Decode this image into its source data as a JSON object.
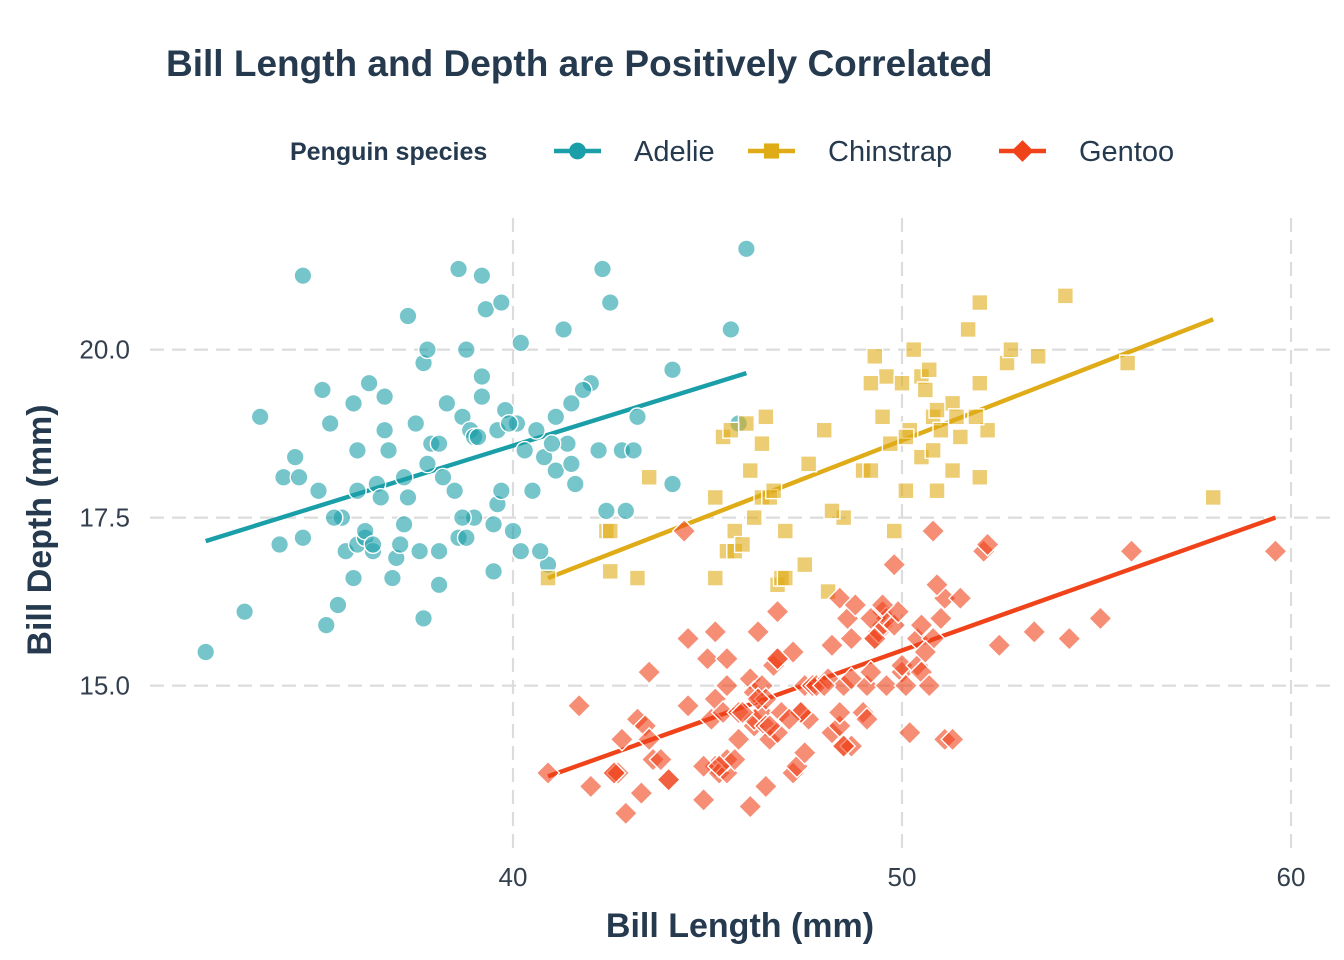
{
  "chart_data": {
    "type": "scatter",
    "title": "Bill Length and Depth are Positively Correlated",
    "xlabel": "Bill Length (mm)",
    "ylabel": "Bill Depth (mm)",
    "xlim": [
      31.3,
      60.6
    ],
    "ylim": [
      12.4,
      22.0
    ],
    "xticks": [
      40,
      50,
      60
    ],
    "xtick_labels": [
      "40",
      "50",
      "60"
    ],
    "yticks": [
      15,
      17.5,
      20
    ],
    "ytick_labels": [
      "15.0",
      "17.5",
      "20.0"
    ],
    "grid": true,
    "legend": {
      "title": "Penguin species",
      "position": "top"
    },
    "series": [
      {
        "name": "Adelie",
        "color": "#1a9fa8",
        "marker": "circle",
        "trend": {
          "x": [
            32.1,
            46.0
          ],
          "y": [
            17.15,
            19.65
          ]
        },
        "points": [
          [
            32.1,
            15.5
          ],
          [
            33.1,
            16.1
          ],
          [
            33.5,
            19.0
          ],
          [
            34.0,
            17.1
          ],
          [
            34.1,
            18.1
          ],
          [
            34.4,
            18.4
          ],
          [
            34.5,
            18.1
          ],
          [
            34.6,
            21.1
          ],
          [
            34.6,
            17.2
          ],
          [
            35.1,
            19.4
          ],
          [
            35.0,
            17.9
          ],
          [
            35.2,
            15.9
          ],
          [
            35.3,
            18.9
          ],
          [
            35.5,
            16.2
          ],
          [
            35.6,
            17.5
          ],
          [
            35.7,
            17.0
          ],
          [
            35.9,
            16.6
          ],
          [
            35.9,
            19.2
          ],
          [
            36.0,
            17.1
          ],
          [
            36.0,
            17.9
          ],
          [
            36.0,
            18.5
          ],
          [
            36.2,
            17.2
          ],
          [
            36.2,
            17.3
          ],
          [
            36.3,
            19.5
          ],
          [
            36.4,
            17.0
          ],
          [
            36.5,
            18.0
          ],
          [
            36.6,
            17.8
          ],
          [
            36.7,
            18.8
          ],
          [
            36.7,
            19.3
          ],
          [
            36.8,
            18.5
          ],
          [
            37.0,
            16.9
          ],
          [
            37.2,
            18.1
          ],
          [
            37.3,
            17.8
          ],
          [
            37.3,
            20.5
          ],
          [
            37.5,
            18.9
          ],
          [
            37.6,
            17.0
          ],
          [
            37.7,
            19.8
          ],
          [
            37.8,
            18.3
          ],
          [
            37.8,
            20.0
          ],
          [
            37.9,
            18.6
          ],
          [
            38.1,
            18.6
          ],
          [
            38.1,
            17.0
          ],
          [
            38.2,
            18.1
          ],
          [
            38.3,
            19.2
          ],
          [
            38.5,
            17.9
          ],
          [
            38.6,
            21.2
          ],
          [
            38.6,
            17.2
          ],
          [
            38.7,
            19.0
          ],
          [
            38.8,
            17.2
          ],
          [
            38.8,
            20.0
          ],
          [
            38.9,
            18.8
          ],
          [
            39.0,
            17.5
          ],
          [
            39.0,
            18.7
          ],
          [
            39.1,
            18.7
          ],
          [
            39.2,
            19.6
          ],
          [
            39.2,
            21.1
          ],
          [
            39.3,
            20.6
          ],
          [
            39.5,
            17.4
          ],
          [
            39.5,
            16.7
          ],
          [
            39.6,
            17.7
          ],
          [
            39.6,
            18.8
          ],
          [
            39.7,
            17.9
          ],
          [
            39.7,
            20.7
          ],
          [
            39.8,
            19.1
          ],
          [
            40.2,
            17.0
          ],
          [
            40.3,
            18.5
          ],
          [
            40.5,
            17.9
          ],
          [
            40.6,
            18.8
          ],
          [
            40.8,
            18.4
          ],
          [
            40.9,
            16.8
          ],
          [
            41.1,
            19.0
          ],
          [
            41.3,
            20.3
          ],
          [
            41.4,
            18.6
          ],
          [
            41.6,
            18.0
          ],
          [
            42.0,
            19.5
          ],
          [
            42.2,
            18.5
          ],
          [
            42.3,
            21.2
          ],
          [
            42.5,
            20.7
          ],
          [
            42.8,
            18.5
          ],
          [
            43.2,
            19.0
          ],
          [
            44.1,
            19.7
          ],
          [
            44.1,
            18.0
          ],
          [
            45.6,
            20.3
          ],
          [
            45.8,
            18.9
          ],
          [
            46.0,
            21.5
          ],
          [
            41.1,
            18.2
          ],
          [
            40.7,
            17.0
          ],
          [
            41.5,
            18.3
          ],
          [
            36.9,
            16.6
          ],
          [
            37.1,
            17.1
          ],
          [
            38.1,
            16.5
          ],
          [
            35.4,
            17.5
          ],
          [
            36.4,
            17.1
          ],
          [
            37.7,
            16.0
          ],
          [
            39.2,
            19.3
          ],
          [
            40.1,
            18.9
          ],
          [
            41.0,
            18.6
          ],
          [
            42.4,
            17.6
          ],
          [
            43.1,
            18.5
          ],
          [
            38.7,
            17.5
          ],
          [
            39.9,
            18.9
          ],
          [
            37.2,
            17.4
          ],
          [
            41.5,
            19.2
          ],
          [
            40.2,
            20.1
          ],
          [
            40.0,
            17.3
          ],
          [
            42.9,
            17.6
          ],
          [
            41.8,
            19.4
          ]
        ]
      },
      {
        "name": "Chinstrap",
        "color": "#dfab17",
        "marker": "square",
        "trend": {
          "x": [
            40.9,
            58.0
          ],
          "y": [
            16.6,
            20.45
          ]
        },
        "points": [
          [
            40.9,
            16.6
          ],
          [
            42.4,
            17.3
          ],
          [
            42.5,
            16.7
          ],
          [
            42.5,
            17.3
          ],
          [
            43.2,
            16.6
          ],
          [
            43.5,
            18.1
          ],
          [
            45.2,
            16.6
          ],
          [
            45.2,
            17.8
          ],
          [
            45.4,
            18.7
          ],
          [
            45.5,
            17.0
          ],
          [
            45.7,
            17.0
          ],
          [
            45.7,
            17.3
          ],
          [
            45.9,
            17.1
          ],
          [
            46.0,
            18.9
          ],
          [
            46.1,
            18.2
          ],
          [
            46.2,
            17.5
          ],
          [
            46.4,
            17.8
          ],
          [
            46.4,
            18.6
          ],
          [
            46.6,
            17.8
          ],
          [
            46.7,
            17.9
          ],
          [
            46.8,
            16.5
          ],
          [
            46.9,
            16.6
          ],
          [
            47.0,
            17.3
          ],
          [
            47.5,
            16.8
          ],
          [
            47.6,
            18.3
          ],
          [
            48.1,
            16.4
          ],
          [
            48.5,
            17.5
          ],
          [
            49.0,
            18.2
          ],
          [
            49.2,
            18.2
          ],
          [
            49.3,
            19.9
          ],
          [
            49.5,
            19.0
          ],
          [
            49.7,
            18.6
          ],
          [
            49.8,
            17.3
          ],
          [
            49.6,
            19.6
          ],
          [
            50.0,
            19.5
          ],
          [
            50.1,
            17.9
          ],
          [
            50.2,
            18.8
          ],
          [
            50.3,
            20.0
          ],
          [
            50.5,
            19.6
          ],
          [
            50.5,
            18.4
          ],
          [
            50.6,
            19.4
          ],
          [
            50.7,
            19.7
          ],
          [
            50.8,
            18.5
          ],
          [
            50.8,
            19.0
          ],
          [
            50.9,
            17.9
          ],
          [
            51.0,
            18.8
          ],
          [
            51.3,
            18.2
          ],
          [
            51.3,
            19.2
          ],
          [
            51.4,
            19.0
          ],
          [
            51.5,
            18.7
          ],
          [
            51.7,
            20.3
          ],
          [
            52.0,
            18.1
          ],
          [
            52.0,
            19.5
          ],
          [
            52.0,
            20.7
          ],
          [
            52.2,
            18.8
          ],
          [
            52.7,
            19.8
          ],
          [
            52.8,
            20.0
          ],
          [
            53.5,
            19.9
          ],
          [
            54.2,
            20.8
          ],
          [
            55.8,
            19.8
          ],
          [
            58.0,
            17.8
          ],
          [
            48.0,
            18.8
          ],
          [
            50.1,
            18.7
          ],
          [
            49.2,
            19.5
          ],
          [
            51.9,
            19.0
          ],
          [
            50.9,
            19.1
          ],
          [
            46.5,
            19.0
          ],
          [
            45.6,
            18.8
          ],
          [
            47.0,
            16.6
          ],
          [
            48.2,
            17.6
          ]
        ]
      },
      {
        "name": "Gentoo",
        "color": "#f0431a",
        "marker": "diamond",
        "trend": {
          "x": [
            40.9,
            59.6
          ],
          "y": [
            13.65,
            17.5
          ]
        },
        "points": [
          [
            40.9,
            13.7
          ],
          [
            41.7,
            14.7
          ],
          [
            42.0,
            13.5
          ],
          [
            42.6,
            13.7
          ],
          [
            42.7,
            13.7
          ],
          [
            42.8,
            14.2
          ],
          [
            42.9,
            13.1
          ],
          [
            43.2,
            14.5
          ],
          [
            43.3,
            13.4
          ],
          [
            43.4,
            14.4
          ],
          [
            43.5,
            15.2
          ],
          [
            43.6,
            13.9
          ],
          [
            43.8,
            13.9
          ],
          [
            44.0,
            13.6
          ],
          [
            44.4,
            17.3
          ],
          [
            44.5,
            14.7
          ],
          [
            44.5,
            15.7
          ],
          [
            44.9,
            13.3
          ],
          [
            45.0,
            15.4
          ],
          [
            45.1,
            14.5
          ],
          [
            45.2,
            13.8
          ],
          [
            45.2,
            14.8
          ],
          [
            45.2,
            15.8
          ],
          [
            45.3,
            13.7
          ],
          [
            45.4,
            14.6
          ],
          [
            45.5,
            13.7
          ],
          [
            45.5,
            13.9
          ],
          [
            45.5,
            15.0
          ],
          [
            45.7,
            13.9
          ],
          [
            45.8,
            14.2
          ],
          [
            45.8,
            14.6
          ],
          [
            46.1,
            13.2
          ],
          [
            46.1,
            15.1
          ],
          [
            46.2,
            14.4
          ],
          [
            46.2,
            14.5
          ],
          [
            46.2,
            14.9
          ],
          [
            46.3,
            15.8
          ],
          [
            46.4,
            14.6
          ],
          [
            46.4,
            15.0
          ],
          [
            46.5,
            13.5
          ],
          [
            46.5,
            14.4
          ],
          [
            46.5,
            14.8
          ],
          [
            46.6,
            14.2
          ],
          [
            46.7,
            15.3
          ],
          [
            46.8,
            14.3
          ],
          [
            46.8,
            15.4
          ],
          [
            46.8,
            16.1
          ],
          [
            46.9,
            14.6
          ],
          [
            47.2,
            13.7
          ],
          [
            47.2,
            15.5
          ],
          [
            47.3,
            13.8
          ],
          [
            47.4,
            14.6
          ],
          [
            47.5,
            14.0
          ],
          [
            47.5,
            15.0
          ],
          [
            47.6,
            14.5
          ],
          [
            47.7,
            15.0
          ],
          [
            47.8,
            15.0
          ],
          [
            48.1,
            15.1
          ],
          [
            48.2,
            14.3
          ],
          [
            48.2,
            15.6
          ],
          [
            48.4,
            14.4
          ],
          [
            48.4,
            14.6
          ],
          [
            48.4,
            16.3
          ],
          [
            48.5,
            14.1
          ],
          [
            48.5,
            15.0
          ],
          [
            48.6,
            16.0
          ],
          [
            48.7,
            14.1
          ],
          [
            48.7,
            15.1
          ],
          [
            48.7,
            15.7
          ],
          [
            48.8,
            16.2
          ],
          [
            49.0,
            14.6
          ],
          [
            49.1,
            14.5
          ],
          [
            49.1,
            15.0
          ],
          [
            49.2,
            15.2
          ],
          [
            49.3,
            15.7
          ],
          [
            49.4,
            15.8
          ],
          [
            49.5,
            15.9
          ],
          [
            49.5,
            16.1
          ],
          [
            49.6,
            15.0
          ],
          [
            49.6,
            16.0
          ],
          [
            49.8,
            15.9
          ],
          [
            49.8,
            16.8
          ],
          [
            49.9,
            16.1
          ],
          [
            50.0,
            15.2
          ],
          [
            50.0,
            15.3
          ],
          [
            50.1,
            15.0
          ],
          [
            50.2,
            14.3
          ],
          [
            50.4,
            15.3
          ],
          [
            50.4,
            15.7
          ],
          [
            50.5,
            15.2
          ],
          [
            50.5,
            15.9
          ],
          [
            50.7,
            15.0
          ],
          [
            50.8,
            15.7
          ],
          [
            50.8,
            17.3
          ],
          [
            51.1,
            14.2
          ],
          [
            51.1,
            16.3
          ],
          [
            51.3,
            14.2
          ],
          [
            51.5,
            16.3
          ],
          [
            52.1,
            17.0
          ],
          [
            52.2,
            17.1
          ],
          [
            52.5,
            15.6
          ],
          [
            53.4,
            15.8
          ],
          [
            54.3,
            15.7
          ],
          [
            55.1,
            16.0
          ],
          [
            55.9,
            17.0
          ],
          [
            59.6,
            17.0
          ],
          [
            44.9,
            13.8
          ],
          [
            45.3,
            13.8
          ],
          [
            46.8,
            15.4
          ],
          [
            47.4,
            14.6
          ],
          [
            48.5,
            14.1
          ],
          [
            49.3,
            15.7
          ],
          [
            50.9,
            16.5
          ],
          [
            51.0,
            16.0
          ],
          [
            42.6,
            13.7
          ],
          [
            44.0,
            13.6
          ],
          [
            45.5,
            15.4
          ],
          [
            46.6,
            14.4
          ],
          [
            47.1,
            14.5
          ],
          [
            48.0,
            15.0
          ],
          [
            49.5,
            16.2
          ],
          [
            50.6,
            15.5
          ],
          [
            43.5,
            14.2
          ],
          [
            45.9,
            14.6
          ],
          [
            46.3,
            14.8
          ],
          [
            49.2,
            16.0
          ]
        ]
      }
    ]
  }
}
